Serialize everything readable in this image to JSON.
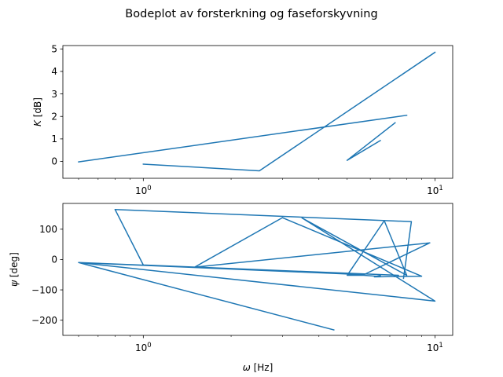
{
  "chart_data": [
    {
      "type": "line",
      "title": "Bodeplot av forsterkning og faseforskyvning",
      "xscale": "log",
      "xlim": [
        0.53,
        11.5
      ],
      "ylim": [
        -0.75,
        5.15
      ],
      "xticks": [
        {
          "value": 1,
          "label": "10^0"
        },
        {
          "value": 10,
          "label": "10^1"
        }
      ],
      "yticks": [
        {
          "value": 0,
          "label": "0"
        },
        {
          "value": 1,
          "label": "1"
        },
        {
          "value": 2,
          "label": "2"
        },
        {
          "value": 3,
          "label": "3"
        },
        {
          "value": 4,
          "label": "4"
        },
        {
          "value": 5,
          "label": "5"
        }
      ],
      "ylabel_prefix": "K",
      "ylabel_suffix": " [dB]",
      "xlabel": "",
      "grid": false,
      "color": "#1f77b4",
      "series": [
        {
          "x": [
            10.0,
            2.5,
            1.0,
            null,
            8.0,
            0.6,
            null,
            7.3,
            5.0,
            6.5,
            5.0
          ],
          "y": [
            4.85,
            -0.42,
            -0.12,
            null,
            2.05,
            -0.02,
            null,
            1.72,
            0.05,
            0.93,
            0.05
          ]
        }
      ]
    },
    {
      "type": "line",
      "xscale": "log",
      "xlim": [
        0.53,
        11.5
      ],
      "ylim": [
        -250,
        185
      ],
      "xticks": [
        {
          "value": 1,
          "label": "10^0"
        },
        {
          "value": 10,
          "label": "10^1"
        }
      ],
      "yticks": [
        {
          "value": -200,
          "label": "−200"
        },
        {
          "value": -100,
          "label": "−100"
        },
        {
          "value": 0,
          "label": "0"
        },
        {
          "value": 100,
          "label": "100"
        }
      ],
      "ylabel_prefix": "ψ",
      "ylabel_suffix": " [deg]",
      "xlabel_prefix": "ω",
      "xlabel_suffix": " [Hz]",
      "grid": false,
      "color": "#1f77b4",
      "series": [
        {
          "x": [
            4.5,
            0.6,
            10.0,
            3.5,
            8.0,
            6.7,
            5.0,
            5.7,
            6.3,
            6.5,
            6.2,
            9.0,
            3.0,
            1.5,
            9.6,
            5.7,
            0.6,
            7.5,
            1.0,
            0.8,
            8.3,
            7.8
          ],
          "y": [
            -232,
            -10,
            -137,
            137,
            -52,
            128,
            -52,
            -52,
            -55,
            -53,
            -57,
            -55,
            138,
            -25,
            55,
            -50,
            -10,
            -52,
            -18,
            165,
            125,
            -62
          ]
        }
      ]
    }
  ]
}
